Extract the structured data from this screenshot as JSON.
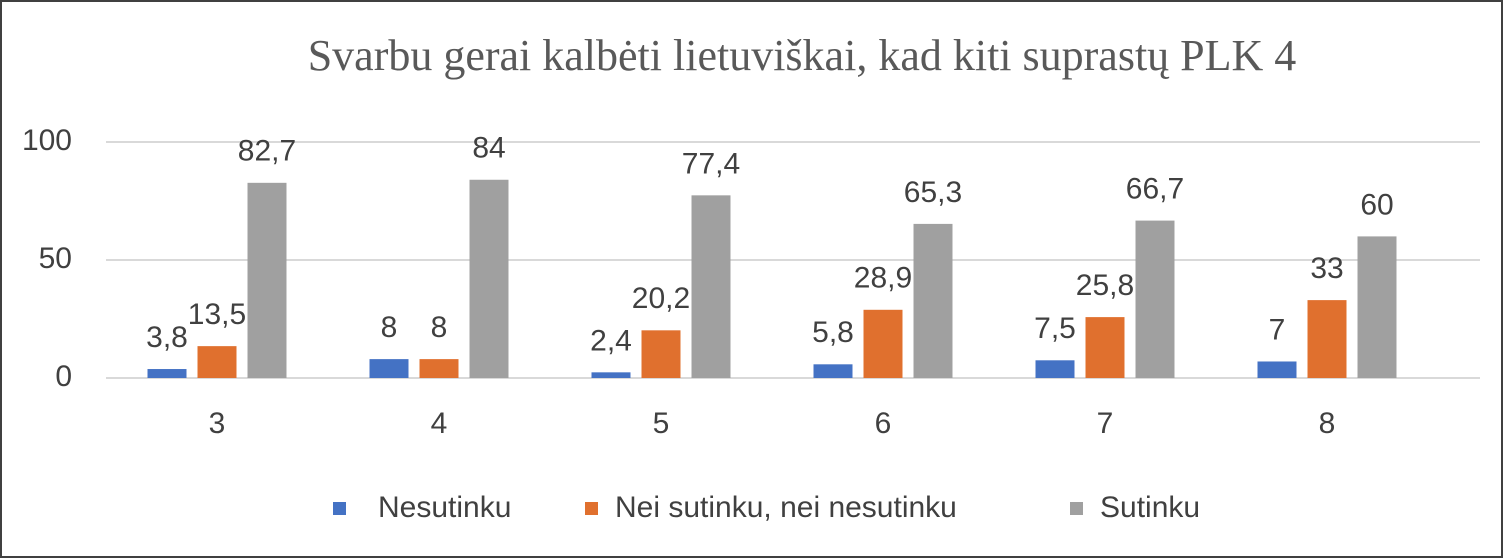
{
  "chart_data": {
    "type": "bar",
    "title": "Svarbu gerai kalbėti lietuviškai, kad kiti suprastų PLK 4",
    "categories": [
      "3",
      "4",
      "5",
      "6",
      "7",
      "8"
    ],
    "series": [
      {
        "name": "Nesutinku",
        "color": "#4472c4",
        "values": [
          3.8,
          8,
          2.4,
          5.8,
          7.5,
          7
        ],
        "value_labels": [
          "3,8",
          "8",
          "2,4",
          "5,8",
          "7,5",
          "7"
        ]
      },
      {
        "name": "Nei sutinku, nei nesutinku",
        "color": "#e0702e",
        "values": [
          13.5,
          8,
          20.2,
          28.9,
          25.8,
          33
        ],
        "value_labels": [
          "13,5",
          "8",
          "20,2",
          "28,9",
          "25,8",
          "33"
        ]
      },
      {
        "name": "Sutinku",
        "color": "#a0a0a0",
        "values": [
          82.7,
          84,
          77.4,
          65.3,
          66.7,
          60
        ],
        "value_labels": [
          "82,7",
          "84",
          "77,4",
          "65,3",
          "66,7",
          "60"
        ]
      }
    ],
    "ylim": [
      0,
      100
    ],
    "yticks": [
      0,
      50,
      100
    ],
    "grid": true,
    "legend": "bottom"
  }
}
